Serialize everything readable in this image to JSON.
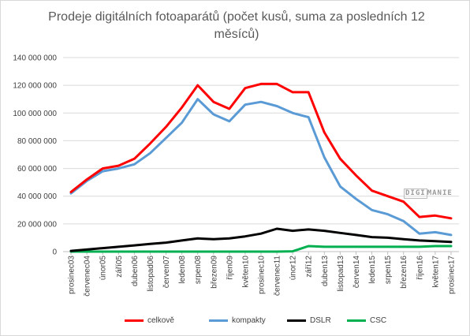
{
  "chart_data": {
    "type": "line",
    "title": "Prodeje digitálních fotoaparátů (počet kusů, suma za posledních 12 měsíců)",
    "xlabel": "",
    "ylabel": "",
    "ylim": [
      0,
      140000000
    ],
    "yticks": [
      0,
      20000000,
      40000000,
      60000000,
      80000000,
      100000000,
      120000000,
      140000000
    ],
    "ytick_labels": [
      "0",
      "20 000 000",
      "40 000 000",
      "60 000 000",
      "80 000 000",
      "100 000 000",
      "120 000 000",
      "140 000 000"
    ],
    "x_tick_labels": [
      "prosinec03",
      "červenec04",
      "únor05",
      "září05",
      "duben06",
      "listopad06",
      "červen07",
      "leden08",
      "srpen08",
      "březen09",
      "říjen09",
      "květen10",
      "prosinec10",
      "červenec11",
      "únor12",
      "září12",
      "duben13",
      "listopad13",
      "červen14",
      "leden15",
      "srpen15",
      "březen16",
      "říjen16",
      "květen17",
      "prosinec17"
    ],
    "grid": true,
    "legend_position": "bottom",
    "series": [
      {
        "name": "celkově",
        "color": "#ff0000",
        "values": [
          43000000,
          52000000,
          60000000,
          62000000,
          67000000,
          78000000,
          90000000,
          104000000,
          120000000,
          108000000,
          103000000,
          118000000,
          121000000,
          121000000,
          115000000,
          115000000,
          86000000,
          67000000,
          55000000,
          44000000,
          40000000,
          36000000,
          25000000,
          26000000,
          24000000
        ]
      },
      {
        "name": "kompakty",
        "color": "#5b9bd5",
        "values": [
          42000000,
          51000000,
          58000000,
          60000000,
          63000000,
          71000000,
          82000000,
          93000000,
          110000000,
          99000000,
          94000000,
          106000000,
          108000000,
          105000000,
          100000000,
          97000000,
          68000000,
          47000000,
          38000000,
          30000000,
          27000000,
          22000000,
          13000000,
          14000000,
          12000000
        ]
      },
      {
        "name": "DSLR",
        "color": "#000000",
        "values": [
          500000,
          1500000,
          2500000,
          3500000,
          4500000,
          5500000,
          6500000,
          8000000,
          9500000,
          9000000,
          9500000,
          11000000,
          13000000,
          16500000,
          15000000,
          16000000,
          15000000,
          13500000,
          12000000,
          10500000,
          10000000,
          9000000,
          8000000,
          7500000,
          7000000
        ]
      },
      {
        "name": "CSC",
        "color": "#00b050",
        "values": [
          0,
          0,
          0,
          0,
          0,
          0,
          0,
          0,
          0,
          0,
          0,
          0,
          0,
          0,
          200000,
          4000000,
          3500000,
          3500000,
          3500000,
          3500000,
          3500000,
          3500000,
          3500000,
          4000000,
          4000000
        ]
      }
    ]
  },
  "watermark": {
    "left": "DIGI",
    "right": "MANIE"
  }
}
